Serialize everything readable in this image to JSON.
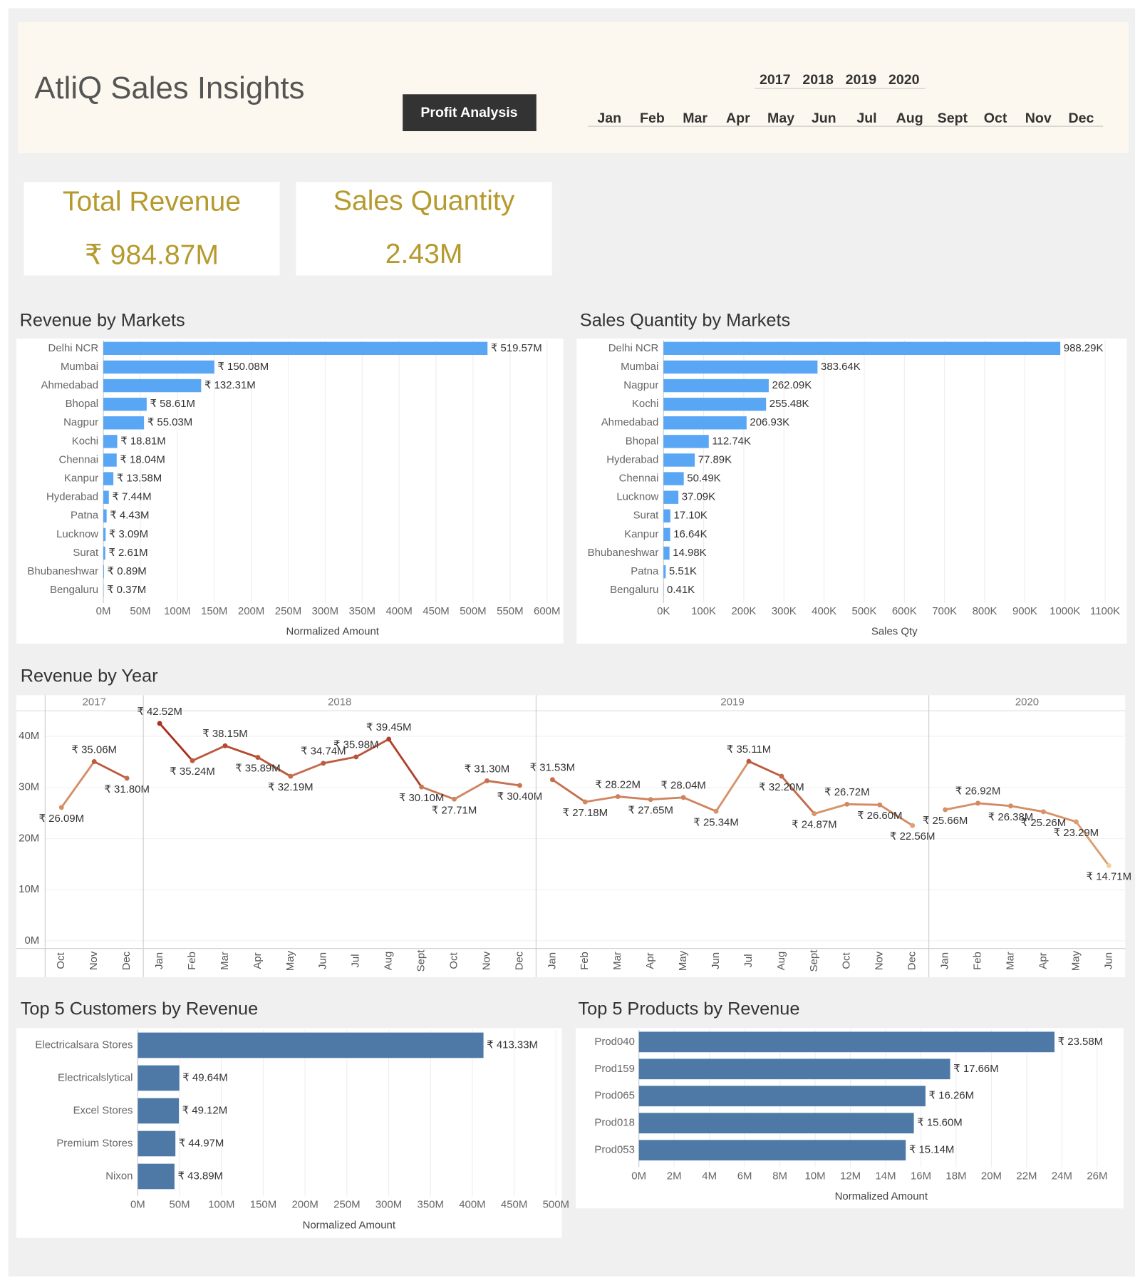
{
  "header": {
    "title": "AtliQ Sales Insights",
    "button": "Profit Analysis",
    "years": [
      "2017",
      "2018",
      "2019",
      "2020"
    ],
    "months": [
      "Jan",
      "Feb",
      "Mar",
      "Apr",
      "May",
      "Jun",
      "Jul",
      "Aug",
      "Sept",
      "Oct",
      "Nov",
      "Dec"
    ]
  },
  "kpis": [
    {
      "label": "Total Revenue",
      "value": "₹ 984.87M"
    },
    {
      "label": "Sales Quantity",
      "value": "2.43M"
    }
  ],
  "chart_data": [
    {
      "type": "hbar",
      "title": "Revenue by Markets",
      "xlabel": "Normalized Amount",
      "color": "#59a6f5",
      "categories": [
        "Delhi NCR",
        "Mumbai",
        "Ahmedabad",
        "Bhopal",
        "Nagpur",
        "Kochi",
        "Chennai",
        "Kanpur",
        "Hyderabad",
        "Patna",
        "Lucknow",
        "Surat",
        "Bhubaneshwar",
        "Bengaluru"
      ],
      "values": [
        519.57,
        150.08,
        132.31,
        58.61,
        55.03,
        18.81,
        18.04,
        13.58,
        7.44,
        4.43,
        3.09,
        2.61,
        0.89,
        0.37
      ],
      "value_labels": [
        "₹ 519.57M",
        "₹ 150.08M",
        "₹ 132.31M",
        "₹ 58.61M",
        "₹ 55.03M",
        "₹ 18.81M",
        "₹ 18.04M",
        "₹ 13.58M",
        "₹ 7.44M",
        "₹ 4.43M",
        "₹ 3.09M",
        "₹ 2.61M",
        "₹ 0.89M",
        "₹ 0.37M"
      ],
      "xlim": [
        0,
        620
      ],
      "xticks": [
        {
          "value": 0,
          "label": "0M"
        },
        {
          "value": 50,
          "label": "50M"
        },
        {
          "value": 100,
          "label": "100M"
        },
        {
          "value": 150,
          "label": "150M"
        },
        {
          "value": 200,
          "label": "200M"
        },
        {
          "value": 250,
          "label": "250M"
        },
        {
          "value": 300,
          "label": "300M"
        },
        {
          "value": 350,
          "label": "350M"
        },
        {
          "value": 400,
          "label": "400M"
        },
        {
          "value": 450,
          "label": "450M"
        },
        {
          "value": 500,
          "label": "500M"
        },
        {
          "value": 550,
          "label": "550M"
        },
        {
          "value": 600,
          "label": "600M"
        }
      ],
      "grid": true
    },
    {
      "type": "hbar",
      "title": "Sales Quantity by Markets",
      "xlabel": "Sales Qty",
      "color": "#59a6f5",
      "categories": [
        "Delhi NCR",
        "Mumbai",
        "Nagpur",
        "Kochi",
        "Ahmedabad",
        "Bhopal",
        "Hyderabad",
        "Chennai",
        "Lucknow",
        "Surat",
        "Kanpur",
        "Bhubaneshwar",
        "Patna",
        "Bengaluru"
      ],
      "values": [
        988.29,
        383.64,
        262.09,
        255.48,
        206.93,
        112.74,
        77.89,
        50.49,
        37.09,
        17.1,
        16.64,
        14.98,
        5.51,
        0.41
      ],
      "value_labels": [
        "988.29K",
        "383.64K",
        "262.09K",
        "255.48K",
        "206.93K",
        "112.74K",
        "77.89K",
        "50.49K",
        "37.09K",
        "17.10K",
        "16.64K",
        "14.98K",
        "5.51K",
        "0.41K"
      ],
      "xlim": [
        0,
        1150
      ],
      "xticks": [
        {
          "value": 0,
          "label": "0K"
        },
        {
          "value": 100,
          "label": "100K"
        },
        {
          "value": 200,
          "label": "200K"
        },
        {
          "value": 300,
          "label": "300K"
        },
        {
          "value": 400,
          "label": "400K"
        },
        {
          "value": 500,
          "label": "500K"
        },
        {
          "value": 600,
          "label": "600K"
        },
        {
          "value": 700,
          "label": "700K"
        },
        {
          "value": 800,
          "label": "800K"
        },
        {
          "value": 900,
          "label": "900K"
        },
        {
          "value": 1000,
          "label": "1000K"
        },
        {
          "value": 1100,
          "label": "1100K"
        }
      ],
      "grid": true
    },
    {
      "type": "line",
      "title": "Revenue by Year",
      "color_range": [
        "#f2cf98",
        "#a8301d"
      ],
      "ylim": [
        -1.5,
        45
      ],
      "yticks": [
        {
          "value": 0,
          "label": "0M"
        },
        {
          "value": 10,
          "label": "10M"
        },
        {
          "value": 20,
          "label": "20M"
        },
        {
          "value": 30,
          "label": "30M"
        },
        {
          "value": 40,
          "label": "40M"
        }
      ],
      "facets": [
        {
          "name": "2017",
          "categories": [
            "Oct",
            "Nov",
            "Dec"
          ],
          "values": [
            26.09,
            35.06,
            31.8
          ],
          "value_labels": [
            "₹ 26.09M",
            "₹ 35.06M",
            "₹ 31.80M"
          ]
        },
        {
          "name": "2018",
          "categories": [
            "Jan",
            "Feb",
            "Mar",
            "Apr",
            "May",
            "Jun",
            "Jul",
            "Aug",
            "Sept",
            "Oct",
            "Nov",
            "Dec"
          ],
          "values": [
            42.52,
            35.24,
            38.15,
            35.89,
            32.19,
            34.74,
            35.98,
            39.45,
            30.1,
            27.71,
            31.3,
            30.4
          ],
          "value_labels": [
            "₹ 42.52M",
            "₹ 35.24M",
            "₹ 38.15M",
            "₹ 35.89M",
            "₹ 32.19M",
            "₹ 34.74M",
            "₹ 35.98M",
            "₹ 39.45M",
            "₹ 30.10M",
            "₹ 27.71M",
            "₹ 31.30M",
            "₹ 30.40M"
          ]
        },
        {
          "name": "2019",
          "categories": [
            "Jan",
            "Feb",
            "Mar",
            "Apr",
            "May",
            "Jun",
            "Jul",
            "Aug",
            "Sept",
            "Oct",
            "Nov",
            "Dec"
          ],
          "values": [
            31.53,
            27.18,
            28.22,
            27.65,
            28.04,
            25.34,
            35.11,
            32.2,
            24.87,
            26.72,
            26.6,
            22.56
          ],
          "value_labels": [
            "₹ 31.53M",
            "₹ 27.18M",
            "₹ 28.22M",
            "₹ 27.65M",
            "₹ 28.04M",
            "₹ 25.34M",
            "₹ 35.11M",
            "₹ 32.20M",
            "₹ 24.87M",
            "₹ 26.72M",
            "₹ 26.60M",
            "₹ 22.56M"
          ]
        },
        {
          "name": "2020",
          "categories": [
            "Jan",
            "Feb",
            "Mar",
            "Apr",
            "May",
            "Jun"
          ],
          "values": [
            25.66,
            26.92,
            26.38,
            25.26,
            23.29,
            14.71
          ],
          "value_labels": [
            "₹ 25.66M",
            "₹ 26.92M",
            "₹ 26.38M",
            "₹ 25.26M",
            "₹ 23.29M",
            "₹ 14.71M"
          ]
        }
      ]
    },
    {
      "type": "hbar",
      "title": "Top 5 Customers by Revenue",
      "xlabel": "Normalized Amount",
      "color": "#4e79a7",
      "categories": [
        "Electricalsara Stores",
        "Electricalslytical",
        "Excel Stores",
        "Premium Stores",
        "Nixon"
      ],
      "values": [
        413.33,
        49.64,
        49.12,
        44.97,
        43.89
      ],
      "value_labels": [
        "₹ 413.33M",
        "₹ 49.64M",
        "₹ 49.12M",
        "₹ 44.97M",
        "₹ 43.89M"
      ],
      "xlim": [
        0,
        505
      ],
      "xticks": [
        {
          "value": 0,
          "label": "0M"
        },
        {
          "value": 50,
          "label": "50M"
        },
        {
          "value": 100,
          "label": "100M"
        },
        {
          "value": 150,
          "label": "150M"
        },
        {
          "value": 200,
          "label": "200M"
        },
        {
          "value": 250,
          "label": "250M"
        },
        {
          "value": 300,
          "label": "300M"
        },
        {
          "value": 350,
          "label": "350M"
        },
        {
          "value": 400,
          "label": "400M"
        },
        {
          "value": 450,
          "label": "450M"
        },
        {
          "value": 500,
          "label": "500M"
        }
      ],
      "grid": true
    },
    {
      "type": "hbar",
      "title": "Top 5 Products by Revenue",
      "xlabel": "Normalized Amount",
      "color": "#4e79a7",
      "categories": [
        "Prod040",
        "Prod159",
        "Prod065",
        "Prod018",
        "Prod053"
      ],
      "values": [
        23.58,
        17.66,
        16.26,
        15.6,
        15.14
      ],
      "value_labels": [
        "₹ 23.58M",
        "₹ 17.66M",
        "₹ 16.26M",
        "₹ 15.60M",
        "₹ 15.14M"
      ],
      "xlim": [
        0,
        27.5
      ],
      "xticks": [
        {
          "value": 0,
          "label": "0M"
        },
        {
          "value": 2,
          "label": "2M"
        },
        {
          "value": 4,
          "label": "4M"
        },
        {
          "value": 6,
          "label": "6M"
        },
        {
          "value": 8,
          "label": "8M"
        },
        {
          "value": 10,
          "label": "10M"
        },
        {
          "value": 12,
          "label": "12M"
        },
        {
          "value": 14,
          "label": "14M"
        },
        {
          "value": 16,
          "label": "16M"
        },
        {
          "value": 18,
          "label": "18M"
        },
        {
          "value": 20,
          "label": "20M"
        },
        {
          "value": 22,
          "label": "22M"
        },
        {
          "value": 24,
          "label": "24M"
        },
        {
          "value": 26,
          "label": "26M"
        }
      ],
      "grid": true
    }
  ]
}
